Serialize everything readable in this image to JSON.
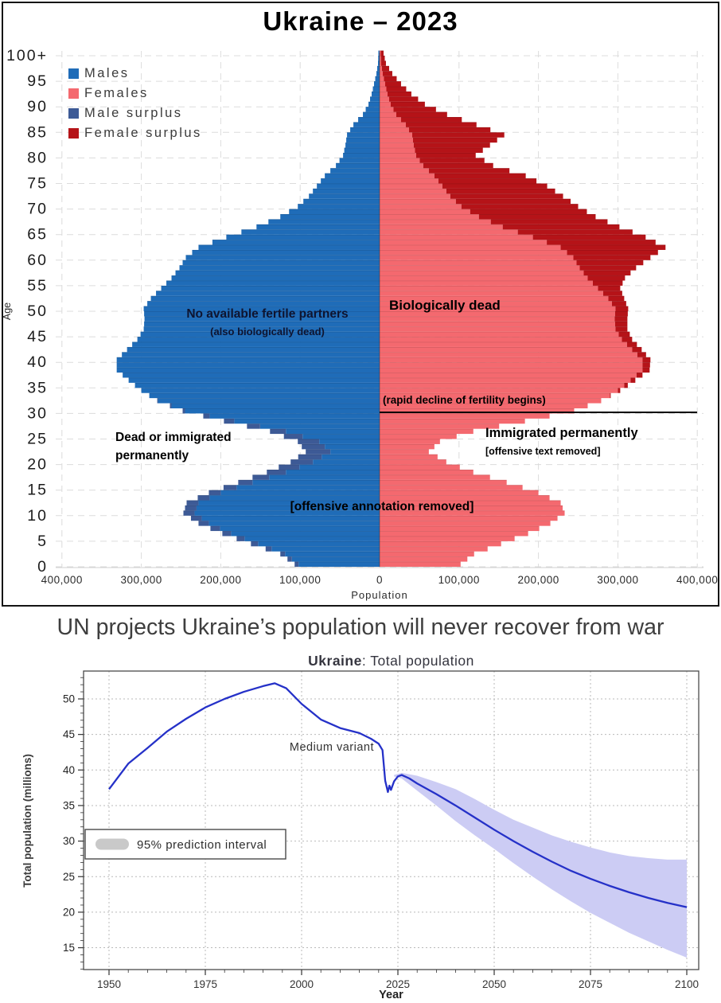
{
  "pyramid": {
    "title": "Ukraine – 2023",
    "xlabel": "Population",
    "ylabel": "Age",
    "legend": [
      {
        "label": "Males",
        "color": "#1f6cb8"
      },
      {
        "label": "Females",
        "color": "#f4696f"
      },
      {
        "label": "Male surplus",
        "color": "#3d5a96"
      },
      {
        "label": "Female surplus",
        "color": "#b51318"
      }
    ],
    "age_ticks": [
      "0",
      "5",
      "10",
      "15",
      "20",
      "25",
      "30",
      "35",
      "40",
      "45",
      "50",
      "55",
      "60",
      "65",
      "70",
      "75",
      "80",
      "85",
      "90",
      "95",
      "100+"
    ],
    "pop_ticks": [
      "400,000",
      "300,000",
      "200,000",
      "100,000",
      "0",
      "100,000",
      "200,000",
      "300,000",
      "400,000"
    ],
    "annotations": {
      "left_mid_title": "No available fertile partners",
      "left_mid_sub": "(also biologically dead)",
      "right_mid_title": "Biologically dead",
      "fertility_note": "(rapid decline of fertility begins)",
      "left_low_line1": "Dead or immigrated",
      "left_low_line2": "permanently",
      "right_low_title": "Immigrated permanently",
      "right_low_sub": "[offensive text removed]",
      "bottom_center": "[offensive annotation removed]"
    }
  },
  "projection": {
    "headline": "UN projects Ukraine’s population will never recover from war",
    "title_bold": "Ukraine",
    "title_rest": ": Total population",
    "xlabel": "Year",
    "ylabel": "Total population (millions)",
    "legend_label": "95% prediction interval",
    "line_label": "Medium variant",
    "x_ticks": [
      1950,
      1975,
      2000,
      2025,
      2050,
      2075,
      2100
    ],
    "y_ticks": [
      15,
      20,
      25,
      30,
      35,
      40,
      45,
      50
    ],
    "colors": {
      "line": "#2531c8",
      "band": "#ccccf4"
    }
  },
  "chart_data": [
    {
      "type": "bar",
      "name": "population-pyramid",
      "title": "Ukraine – 2023",
      "xlabel": "Population",
      "ylabel": "Age",
      "orientation": "horizontal-pyramid",
      "x_range": [
        -400000,
        400000
      ],
      "age_range": [
        0,
        100
      ],
      "note": "1-year bins; values read from pixel widths; linear interpolation between anchor ages; surplus = |males-females| drawn in dark shade at bar tip",
      "anchor_points": [
        {
          "age": 0,
          "males": 107000,
          "females": 102000
        },
        {
          "age": 2,
          "males": 125000,
          "females": 119000
        },
        {
          "age": 4,
          "males": 162000,
          "females": 153000
        },
        {
          "age": 6,
          "males": 198000,
          "females": 187000
        },
        {
          "age": 8,
          "males": 228000,
          "females": 215000
        },
        {
          "age": 10,
          "males": 247000,
          "females": 233000
        },
        {
          "age": 12,
          "males": 243000,
          "females": 228000
        },
        {
          "age": 14,
          "males": 215000,
          "females": 200000
        },
        {
          "age": 16,
          "males": 178000,
          "females": 160000
        },
        {
          "age": 18,
          "males": 142000,
          "females": 118000
        },
        {
          "age": 20,
          "males": 112000,
          "females": 84000
        },
        {
          "age": 22,
          "males": 93000,
          "females": 62000
        },
        {
          "age": 24,
          "males": 103000,
          "females": 76000
        },
        {
          "age": 26,
          "males": 138000,
          "females": 118000
        },
        {
          "age": 28,
          "males": 196000,
          "females": 183000
        },
        {
          "age": 30,
          "males": 248000,
          "females": 245000
        },
        {
          "age": 32,
          "males": 280000,
          "females": 279000
        },
        {
          "age": 34,
          "males": 300000,
          "females": 303000
        },
        {
          "age": 36,
          "males": 316000,
          "females": 322000
        },
        {
          "age": 38,
          "males": 331000,
          "females": 340000
        },
        {
          "age": 40,
          "males": 331000,
          "females": 341000
        },
        {
          "age": 42,
          "males": 318000,
          "females": 330000
        },
        {
          "age": 44,
          "males": 305000,
          "females": 318000
        },
        {
          "age": 46,
          "males": 297000,
          "females": 312000
        },
        {
          "age": 48,
          "males": 296000,
          "females": 312000
        },
        {
          "age": 50,
          "males": 297000,
          "females": 313000
        },
        {
          "age": 52,
          "males": 288000,
          "females": 308000
        },
        {
          "age": 54,
          "males": 275000,
          "females": 303000
        },
        {
          "age": 56,
          "males": 262000,
          "females": 309000
        },
        {
          "age": 58,
          "males": 252000,
          "females": 323000
        },
        {
          "age": 60,
          "males": 244000,
          "females": 341000
        },
        {
          "age": 62,
          "males": 228000,
          "females": 360000
        },
        {
          "age": 64,
          "males": 193000,
          "females": 335000
        },
        {
          "age": 66,
          "males": 155000,
          "females": 302000
        },
        {
          "age": 68,
          "males": 125000,
          "females": 272000
        },
        {
          "age": 70,
          "males": 103000,
          "females": 250000
        },
        {
          "age": 72,
          "males": 89000,
          "females": 231000
        },
        {
          "age": 74,
          "males": 79000,
          "females": 211000
        },
        {
          "age": 76,
          "males": 69000,
          "females": 184000
        },
        {
          "age": 78,
          "males": 55000,
          "females": 143000
        },
        {
          "age": 80,
          "males": 46000,
          "females": 121000
        },
        {
          "age": 82,
          "males": 43000,
          "females": 139000
        },
        {
          "age": 84,
          "males": 41000,
          "females": 157000
        },
        {
          "age": 86,
          "males": 33000,
          "females": 122000
        },
        {
          "age": 88,
          "males": 21000,
          "females": 85000
        },
        {
          "age": 90,
          "males": 14000,
          "females": 57000
        },
        {
          "age": 92,
          "males": 10000,
          "females": 40000
        },
        {
          "age": 94,
          "males": 7000,
          "females": 27000
        },
        {
          "age": 96,
          "males": 4000,
          "females": 16000
        },
        {
          "age": 98,
          "males": 2000,
          "females": 8000
        },
        {
          "age": 100,
          "males": 1500,
          "females": 5000
        }
      ]
    },
    {
      "type": "line",
      "name": "total-population-projection",
      "title": "Ukraine: Total population",
      "xlabel": "Year",
      "ylabel": "Total population (millions)",
      "x_range": [
        1950,
        2100
      ],
      "y_ticks": [
        15,
        20,
        25,
        30,
        35,
        40,
        45,
        50
      ],
      "grid": "dotted",
      "legend_position": "lower-left-box",
      "series": [
        {
          "name": "Medium variant",
          "x": [
            1950,
            1955,
            1960,
            1965,
            1970,
            1975,
            1980,
            1985,
            1990,
            1993,
            1996,
            2000,
            2005,
            2010,
            2015,
            2018,
            2020,
            2021,
            2021.7,
            2022.4,
            2022.8,
            2023.2,
            2024,
            2025,
            2026,
            2028,
            2030,
            2035,
            2040,
            2045,
            2050,
            2055,
            2060,
            2065,
            2070,
            2075,
            2080,
            2085,
            2090,
            2095,
            2100
          ],
          "y": [
            37.3,
            40.9,
            43.1,
            45.4,
            47.2,
            48.8,
            50.0,
            51.0,
            51.8,
            52.2,
            51.5,
            49.3,
            47.1,
            45.9,
            45.2,
            44.4,
            43.7,
            42.8,
            38.5,
            36.9,
            37.8,
            37.2,
            38.4,
            39.1,
            39.3,
            38.8,
            38.1,
            36.6,
            35.0,
            33.3,
            31.6,
            30.0,
            28.5,
            27.1,
            25.8,
            24.7,
            23.7,
            22.8,
            22.0,
            21.3,
            20.7
          ]
        }
      ],
      "interval_95": {
        "x": [
          2024,
          2026,
          2030,
          2035,
          2040,
          2045,
          2050,
          2055,
          2060,
          2065,
          2070,
          2075,
          2080,
          2085,
          2090,
          2095,
          2100
        ],
        "upper": [
          39.3,
          39.6,
          39.2,
          38.3,
          37.3,
          35.9,
          34.4,
          33.0,
          31.9,
          30.8,
          29.9,
          29.1,
          28.4,
          27.9,
          27.6,
          27.4,
          27.4
        ],
        "lower": [
          39.1,
          38.8,
          37.1,
          35.0,
          32.8,
          30.8,
          28.9,
          26.9,
          25.0,
          23.2,
          21.5,
          19.9,
          18.5,
          17.1,
          15.9,
          14.7,
          13.6
        ]
      }
    }
  ]
}
